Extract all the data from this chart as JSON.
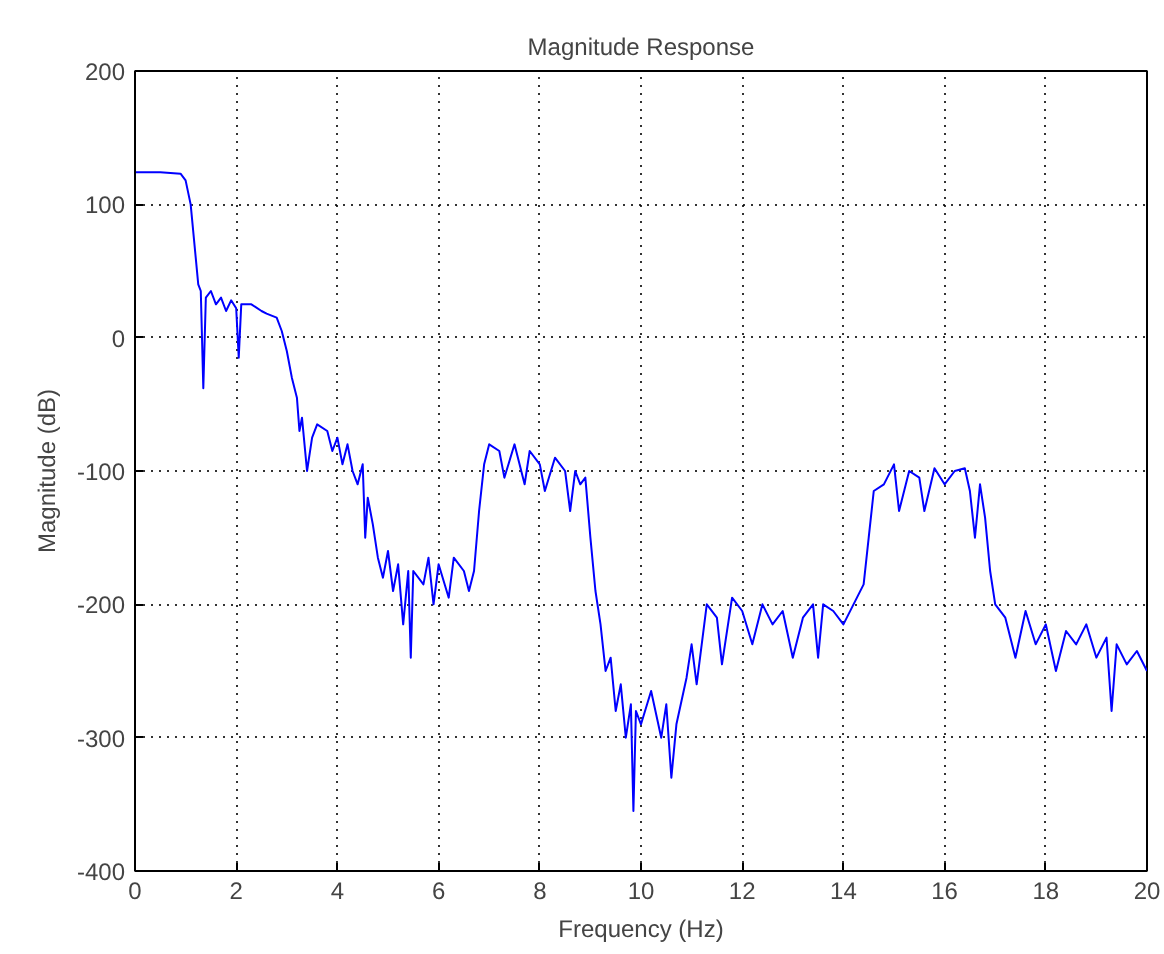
{
  "chart_data": {
    "type": "line",
    "title": "Magnitude Response",
    "xlabel": "Frequency (Hz)",
    "ylabel": "Magnitude (dB)",
    "xlim": [
      0,
      20
    ],
    "ylim": [
      -400,
      200
    ],
    "xticks": [
      0,
      2,
      4,
      6,
      8,
      10,
      12,
      14,
      16,
      18,
      20
    ],
    "yticks": [
      -400,
      -300,
      -200,
      -100,
      0,
      100,
      200
    ],
    "grid": true,
    "series": [
      {
        "color": "#0000ff",
        "x": [
          0,
          0.5,
          0.9,
          1.0,
          1.1,
          1.2,
          1.25,
          1.3,
          1.35,
          1.4,
          1.5,
          1.6,
          1.7,
          1.8,
          1.9,
          2.0,
          2.05,
          2.1,
          2.3,
          2.5,
          2.6,
          2.8,
          2.9,
          3.0,
          3.1,
          3.2,
          3.25,
          3.3,
          3.4,
          3.5,
          3.6,
          3.8,
          3.9,
          4.0,
          4.1,
          4.2,
          4.3,
          4.4,
          4.5,
          4.55,
          4.6,
          4.7,
          4.8,
          4.9,
          5.0,
          5.1,
          5.2,
          5.3,
          5.4,
          5.45,
          5.5,
          5.7,
          5.8,
          5.9,
          6.0,
          6.2,
          6.3,
          6.5,
          6.6,
          6.7,
          6.8,
          6.9,
          7.0,
          7.2,
          7.3,
          7.5,
          7.7,
          7.8,
          8.0,
          8.1,
          8.3,
          8.5,
          8.6,
          8.7,
          8.8,
          8.9,
          9.0,
          9.1,
          9.2,
          9.3,
          9.4,
          9.5,
          9.6,
          9.7,
          9.8,
          9.85,
          9.9,
          10.0,
          10.2,
          10.4,
          10.5,
          10.6,
          10.7,
          10.9,
          11.0,
          11.1,
          11.3,
          11.5,
          11.6,
          11.8,
          12.0,
          12.2,
          12.4,
          12.6,
          12.8,
          13.0,
          13.2,
          13.4,
          13.5,
          13.6,
          13.8,
          14.0,
          14.2,
          14.4,
          14.5,
          14.6,
          14.8,
          15.0,
          15.1,
          15.3,
          15.5,
          15.6,
          15.8,
          16.0,
          16.2,
          16.4,
          16.5,
          16.6,
          16.7,
          16.8,
          16.9,
          17.0,
          17.2,
          17.4,
          17.6,
          17.8,
          18.0,
          18.2,
          18.4,
          18.6,
          18.8,
          19.0,
          19.2,
          19.3,
          19.4,
          19.6,
          19.8,
          20.0
        ],
        "values": [
          124,
          124,
          123,
          118,
          100,
          60,
          40,
          35,
          -38,
          30,
          35,
          25,
          30,
          20,
          28,
          22,
          -15,
          25,
          25,
          20,
          18,
          15,
          5,
          -10,
          -30,
          -45,
          -70,
          -60,
          -100,
          -75,
          -65,
          -70,
          -85,
          -75,
          -95,
          -80,
          -100,
          -110,
          -95,
          -150,
          -120,
          -140,
          -165,
          -180,
          -160,
          -190,
          -170,
          -215,
          -175,
          -240,
          -175,
          -185,
          -165,
          -200,
          -170,
          -195,
          -165,
          -175,
          -190,
          -175,
          -130,
          -95,
          -80,
          -85,
          -105,
          -80,
          -110,
          -85,
          -95,
          -115,
          -90,
          -100,
          -130,
          -100,
          -110,
          -105,
          -150,
          -190,
          -215,
          -250,
          -240,
          -280,
          -260,
          -300,
          -275,
          -355,
          -280,
          -290,
          -265,
          -300,
          -275,
          -330,
          -290,
          -255,
          -230,
          -260,
          -200,
          -210,
          -245,
          -195,
          -205,
          -230,
          -200,
          -215,
          -205,
          -240,
          -210,
          -200,
          -240,
          -200,
          -205,
          -215,
          -200,
          -185,
          -150,
          -115,
          -110,
          -95,
          -130,
          -100,
          -105,
          -130,
          -98,
          -110,
          -100,
          -98,
          -115,
          -150,
          -110,
          -135,
          -175,
          -200,
          -210,
          -240,
          -205,
          -230,
          -215,
          -250,
          -220,
          -230,
          -215,
          -240,
          -225,
          -280,
          -230,
          -245,
          -235,
          -250
        ]
      }
    ]
  }
}
